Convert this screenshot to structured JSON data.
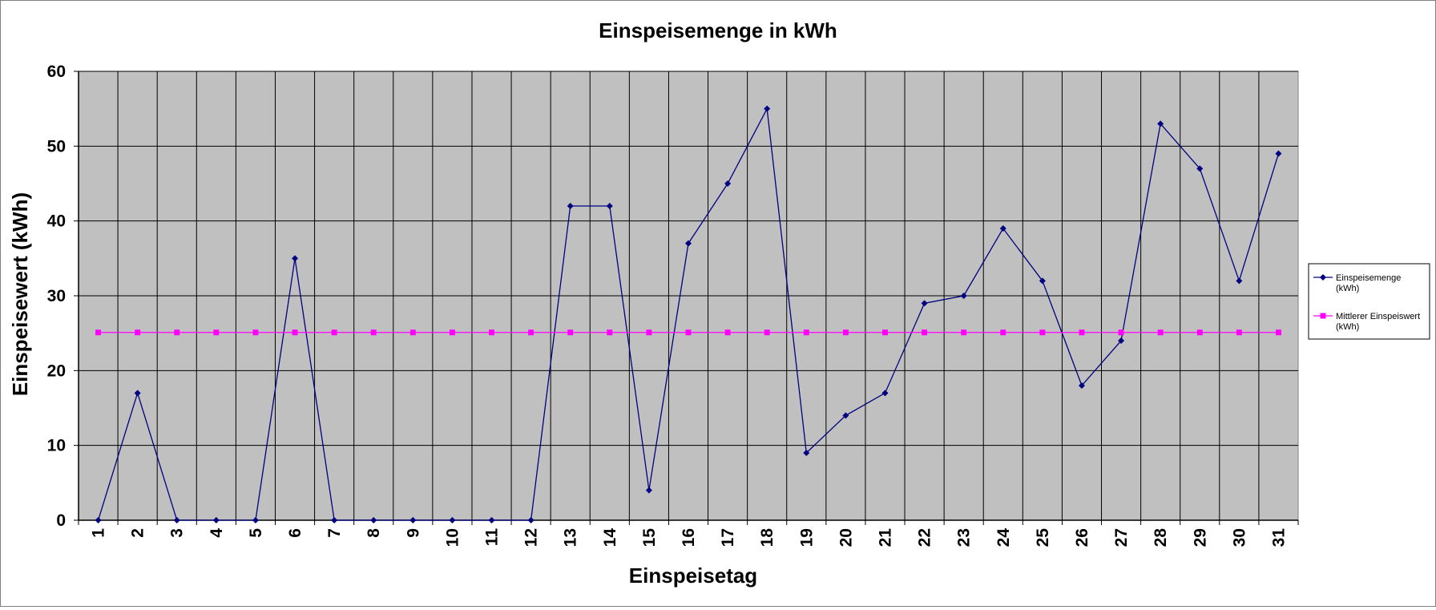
{
  "chart_data": {
    "type": "line",
    "title": "Einspeisemenge in kWh",
    "xlabel": "Einspeisetag",
    "ylabel": "Einspeisewert  (kWh)",
    "x": [
      1,
      2,
      3,
      4,
      5,
      6,
      7,
      8,
      9,
      10,
      11,
      12,
      13,
      14,
      15,
      16,
      17,
      18,
      19,
      20,
      21,
      22,
      23,
      24,
      25,
      26,
      27,
      28,
      29,
      30,
      31
    ],
    "ylim": [
      0,
      60
    ],
    "yticks": [
      0,
      10,
      20,
      30,
      40,
      50,
      60
    ],
    "grid": true,
    "legend_position": "right",
    "plot_background": "#c0c0c0",
    "series": [
      {
        "name": "Einspeisemenge (kWh)",
        "legend_lines": [
          "Einspeisemenge",
          "(kWh)"
        ],
        "color": "#000080",
        "marker": "diamond",
        "values": [
          0,
          17,
          0,
          0,
          0,
          35,
          0,
          0,
          0,
          0,
          0,
          0,
          42,
          42,
          4,
          37,
          45,
          55,
          9,
          14,
          17,
          29,
          30,
          39,
          32,
          18,
          24,
          53,
          47,
          32,
          49
        ]
      },
      {
        "name": "Mittlerer Einspeiswert (kWh)",
        "legend_lines": [
          "Mittlerer Einspeiswert",
          "(kWh)"
        ],
        "color": "#ff00ff",
        "marker": "square",
        "values": [
          25.1,
          25.1,
          25.1,
          25.1,
          25.1,
          25.1,
          25.1,
          25.1,
          25.1,
          25.1,
          25.1,
          25.1,
          25.1,
          25.1,
          25.1,
          25.1,
          25.1,
          25.1,
          25.1,
          25.1,
          25.1,
          25.1,
          25.1,
          25.1,
          25.1,
          25.1,
          25.1,
          25.1,
          25.1,
          25.1,
          25.1
        ]
      }
    ]
  }
}
